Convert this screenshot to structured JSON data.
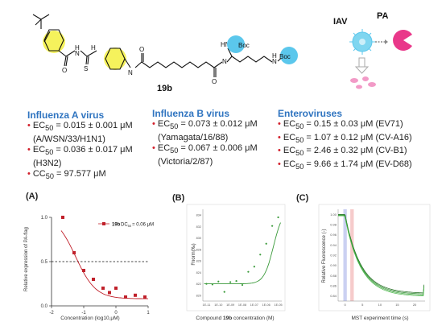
{
  "compound": {
    "name": "19b",
    "boc_label_1": "Boc",
    "boc_label_2": "Boc",
    "hn_label": "HN",
    "nh_labels": [
      "H",
      "N",
      "H",
      "N",
      "H"
    ],
    "atom_S": "S",
    "atom_O": "O"
  },
  "schema": {
    "iav_label": "IAV",
    "pa_label": "PA"
  },
  "influenza_a": {
    "title": "Influenza A virus",
    "items": [
      {
        "line1_prefix": "EC",
        "line1_sub": "50",
        "line1_value": " = 0.015 ± 0.001 μM",
        "line2": "(A/WSN/33/H1N1)"
      },
      {
        "line1_prefix": "EC",
        "line1_sub": "50",
        "line1_value": " = 0.036 ± 0.017 μM",
        "line2": "(H3N2)"
      },
      {
        "line1_prefix": "CC",
        "line1_sub": "50",
        "line1_value": " = 97.577 μM",
        "line2": ""
      }
    ]
  },
  "influenza_b": {
    "title": "Influenza B virus",
    "items": [
      {
        "line1_prefix": "EC",
        "line1_sub": "50",
        "line1_value": " = 0.073 ± 0.012 μM",
        "line2": "(Yamagata/16/88)"
      },
      {
        "line1_prefix": "EC",
        "line1_sub": "50",
        "line1_value": " = 0.067 ± 0.006 μM",
        "line2": "(Victoria/2/87)"
      }
    ]
  },
  "enteroviruses": {
    "title": "Enteroviruses",
    "items": [
      {
        "line1_prefix": "EC",
        "line1_sub": "50",
        "line1_value": " = 0.15 ± 0.03 μM  (EV71)"
      },
      {
        "line1_prefix": "EC",
        "line1_sub": "50",
        "line1_value": " = 1.07 ± 0.12 μM  (CV-A16)"
      },
      {
        "line1_prefix": "EC",
        "line1_sub": "50",
        "line1_value": " = 2.46 ± 0.32 μM  (CV-B1)"
      },
      {
        "line1_prefix": "EC",
        "line1_sub": "50",
        "line1_value": " = 9.66 ± 1.74 μM  (EV-D68)"
      }
    ]
  },
  "panels": {
    "a_label": "(A)",
    "b_label": "(B)",
    "c_label": "(C)"
  },
  "chart_data": [
    {
      "type": "scatter",
      "panel": "A",
      "title": "",
      "xlabel": "Concentration (log10,μM)",
      "ylabel": "Relative expression of PA-flag",
      "xlim": [
        -2,
        1
      ],
      "ylim": [
        0,
        1.0
      ],
      "xticks": [
        "-2",
        "-1",
        "0",
        "1"
      ],
      "yticks": [
        "0.0",
        "0.5",
        "1.0"
      ],
      "reference_line_y": 0.5,
      "legend": {
        "series": "19b",
        "annotation_prefix": "DC",
        "annotation_sub": "50",
        "annotation_value": "= 0.06 μM",
        "placement": "top-right"
      },
      "series": [
        {
          "name": "19b",
          "color": "#c0202a",
          "x": [
            -1.65,
            -1.3,
            -1.0,
            -0.7,
            -0.4,
            -0.2,
            0.0,
            0.3,
            0.6,
            0.9
          ],
          "y": [
            1.0,
            0.6,
            0.4,
            0.3,
            0.2,
            0.15,
            0.2,
            0.1,
            0.12,
            0.1
          ]
        }
      ]
    },
    {
      "type": "scatter",
      "panel": "B",
      "title": "",
      "xlabel_prefix": "Compound ",
      "xlabel_bold": "19b",
      "xlabel_suffix": " concentration (M)",
      "ylabel": "Fnorm(‰)",
      "xticks": [
        "1E-11",
        "1E-10",
        "1E-09",
        "1E-08",
        "1E-07",
        "1E-06",
        "1E-05"
      ],
      "yticks": [
        "820",
        "822",
        "824",
        "826",
        "828",
        "830",
        "832",
        "834"
      ],
      "ylim": [
        819,
        835
      ],
      "xlim_log10": [
        -11.3,
        -4.7
      ],
      "series": [
        {
          "name": "",
          "color": "#3a9a3a",
          "logx": [
            -11,
            -10.5,
            -10,
            -9.5,
            -9,
            -8.5,
            -8,
            -7.5,
            -7,
            -6.5,
            -6,
            -5.5,
            -5
          ],
          "y": [
            822.0,
            821.9,
            822.4,
            820.6,
            822.3,
            822.5,
            821.8,
            824.1,
            825.0,
            827.1,
            829.0,
            832.1,
            833.6
          ]
        }
      ]
    },
    {
      "type": "line",
      "panel": "C",
      "title": "",
      "xlabel": "MST experiment time (s)",
      "ylabel": "Relative Fluorescence (-)",
      "xticks": [
        "0",
        "5",
        "10",
        "15",
        "20"
      ],
      "yticks": [
        "0.84",
        "0.86",
        "0.88",
        "0.90",
        "0.92",
        "0.94",
        "0.96",
        "0.98",
        "1.00"
      ],
      "xlim": [
        -2,
        23
      ],
      "ylim": [
        0.83,
        1.01
      ],
      "bands": [
        {
          "name": "cold",
          "from": -0.5,
          "to": 0.5,
          "color": "#b9c2ee"
        },
        {
          "name": "hot",
          "from": 1.5,
          "to": 2.5,
          "color": "#f3b9b9"
        }
      ]
    }
  ],
  "colors": {
    "accent_blue": "#2f74c0",
    "bullet_red": "#d21f2b",
    "highlight_yellow": "#f3f040",
    "boc_blue": "#5bc7ec",
    "pa_pink": "#e9388a"
  }
}
